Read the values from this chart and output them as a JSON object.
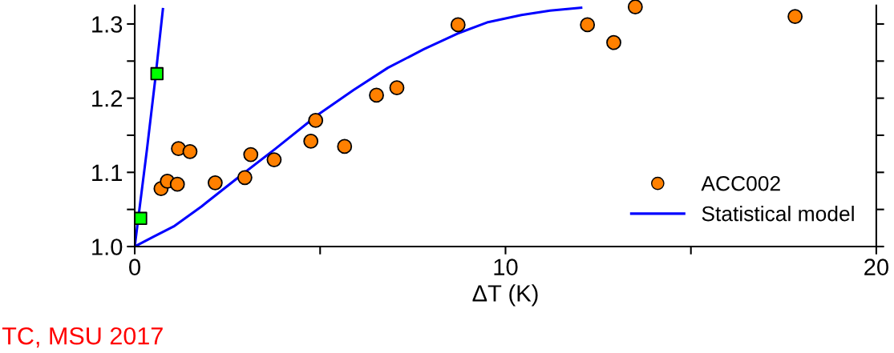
{
  "chart_data": {
    "type": "scatter",
    "xlabel": "ΔT (K)",
    "series": [
      {
        "name": "ACC002",
        "marker": "circle",
        "color": "#ff8000",
        "x": [
          0.71,
          0.88,
          1.15,
          1.18,
          1.49,
          2.17,
          2.97,
          3.13,
          3.76,
          4.75,
          4.88,
          5.66,
          6.52,
          7.07,
          8.72,
          12.21,
          12.92,
          13.5,
          17.81
        ],
        "values": [
          1.078,
          1.088,
          1.084,
          1.132,
          1.128,
          1.086,
          1.093,
          1.124,
          1.117,
          1.142,
          1.17,
          1.135,
          1.204,
          1.214,
          1.299,
          1.299,
          1.275,
          1.323,
          1.31
        ]
      },
      {
        "marker": "square",
        "color": "#00ff00",
        "x": [
          0.16,
          0.6
        ],
        "values": [
          1.038,
          1.233
        ]
      },
      {
        "name": "Statistical model",
        "type": "line",
        "marker": "none",
        "line_style": "solid",
        "color": "#0000ff",
        "x": [
          0,
          0.5,
          1.05,
          1.8,
          2.79,
          3.8,
          4.95,
          5.9,
          6.83,
          7.8,
          8.7,
          9.5,
          10.43,
          11.2,
          12.04
        ],
        "values": [
          1.0,
          1.013,
          1.027,
          1.054,
          1.093,
          1.132,
          1.178,
          1.211,
          1.241,
          1.266,
          1.287,
          1.302,
          1.312,
          1.318,
          1.322
        ]
      },
      {
        "type": "line",
        "marker": "none",
        "line_style": "solid",
        "color": "#0000ff",
        "x": [
          0,
          0.33,
          0.55,
          0.76
        ],
        "values": [
          1.0,
          1.131,
          1.224,
          1.32
        ]
      }
    ],
    "xlim": [
      0,
      20
    ],
    "ylim": [
      1.0,
      1.325
    ],
    "xticks": [
      0,
      {
        "value": 5,
        "label": null
      },
      10,
      {
        "value": 15,
        "label": null
      },
      20
    ],
    "yticks": [
      {
        "value": 1.0,
        "label": "1.0"
      },
      {
        "value": 1.05,
        "label": null
      },
      {
        "value": 1.1,
        "label": "1.1"
      },
      {
        "value": 1.15,
        "label": null
      },
      {
        "value": 1.2,
        "label": "1.2"
      },
      {
        "value": 1.25,
        "label": null
      },
      {
        "value": 1.3,
        "label": "1.3"
      }
    ],
    "legend": "lower right",
    "grid": false,
    "annotations": [
      "TC, MSU 2017"
    ]
  }
}
